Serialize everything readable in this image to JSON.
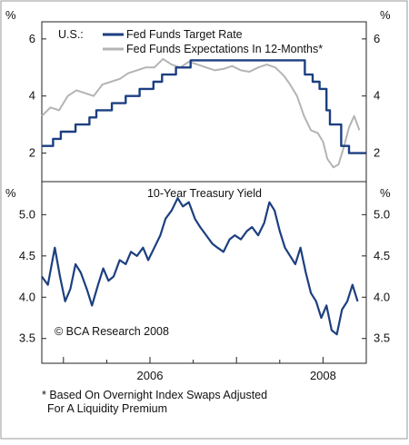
{
  "chart_data": [
    {
      "type": "line",
      "region_label": "U.S.:",
      "unit_left": "%",
      "unit_right": "%",
      "ylim": [
        1,
        6.6
      ],
      "yticks": [
        2,
        4,
        6
      ],
      "grid": false,
      "legend_placement": "top-center",
      "x_domain": [
        2004.75,
        2008.5
      ],
      "series": [
        {
          "name": "Fed Funds Target Rate",
          "color": "#1c3f80",
          "step": true,
          "x": [
            2004.75,
            2004.8,
            2004.88,
            2004.97,
            2005.04,
            2005.14,
            2005.22,
            2005.3,
            2005.38,
            2005.47,
            2005.56,
            2005.64,
            2005.72,
            2005.8,
            2005.88,
            2005.97,
            2006.04,
            2006.14,
            2006.22,
            2006.3,
            2006.38,
            2006.47,
            2007.7,
            2007.79,
            2007.83,
            2007.88,
            2007.96,
            2008.04,
            2008.08,
            2008.21,
            2008.3,
            2008.5
          ],
          "values": [
            2.25,
            2.25,
            2.5,
            2.75,
            2.75,
            3.0,
            3.0,
            3.25,
            3.5,
            3.5,
            3.75,
            3.75,
            4.0,
            4.0,
            4.25,
            4.25,
            4.5,
            4.75,
            4.75,
            5.0,
            5.0,
            5.25,
            5.25,
            4.75,
            4.75,
            4.5,
            4.25,
            3.5,
            3.0,
            2.25,
            2.0,
            2.0
          ]
        },
        {
          "name": "Fed Funds Expectations In 12-Months*",
          "color": "#b4b4b4",
          "step": false,
          "x": [
            2004.75,
            2004.85,
            2004.95,
            2005.05,
            2005.15,
            2005.25,
            2005.35,
            2005.45,
            2005.55,
            2005.65,
            2005.75,
            2005.85,
            2005.95,
            2006.05,
            2006.15,
            2006.25,
            2006.35,
            2006.45,
            2006.55,
            2006.65,
            2006.75,
            2006.85,
            2006.95,
            2007.05,
            2007.15,
            2007.25,
            2007.35,
            2007.45,
            2007.55,
            2007.62,
            2007.7,
            2007.78,
            2007.86,
            2007.94,
            2008.0,
            2008.05,
            2008.12,
            2008.18,
            2008.24,
            2008.3,
            2008.36,
            2008.42
          ],
          "values": [
            3.3,
            3.6,
            3.5,
            4.0,
            4.2,
            4.1,
            4.0,
            4.4,
            4.5,
            4.6,
            4.8,
            4.9,
            5.0,
            5.0,
            5.3,
            5.1,
            5.0,
            5.2,
            5.1,
            5.0,
            4.9,
            4.95,
            5.05,
            4.9,
            4.85,
            5.0,
            5.1,
            5.0,
            4.7,
            4.4,
            4.0,
            3.3,
            2.8,
            2.7,
            2.4,
            1.8,
            1.5,
            1.6,
            2.2,
            2.9,
            3.3,
            2.8
          ]
        }
      ]
    },
    {
      "type": "line",
      "title": "10-Year Treasury Yield",
      "unit_left": "%",
      "unit_right": "%",
      "ylim": [
        3.2,
        5.4
      ],
      "yticks": [
        "3.5",
        "4.0",
        "4.5",
        "5.0"
      ],
      "grid": false,
      "annotation": "© BCA Research 2008",
      "x_domain": [
        2004.75,
        2008.5
      ],
      "xticks": [
        "2006",
        "2008"
      ],
      "series": [
        {
          "color": "#1c3f80",
          "x": [
            2004.75,
            2004.82,
            2004.9,
            2004.96,
            2005.02,
            2005.08,
            2005.14,
            2005.2,
            2005.27,
            2005.33,
            2005.4,
            2005.46,
            2005.52,
            2005.58,
            2005.65,
            2005.72,
            2005.78,
            2005.85,
            2005.92,
            2005.98,
            2006.05,
            2006.12,
            2006.18,
            2006.25,
            2006.32,
            2006.38,
            2006.45,
            2006.52,
            2006.58,
            2006.65,
            2006.72,
            2006.78,
            2006.85,
            2006.92,
            2006.98,
            2007.05,
            2007.12,
            2007.18,
            2007.25,
            2007.32,
            2007.38,
            2007.44,
            2007.5,
            2007.56,
            2007.62,
            2007.68,
            2007.74,
            2007.8,
            2007.86,
            2007.92,
            2007.98,
            2008.04,
            2008.1,
            2008.16,
            2008.22,
            2008.28,
            2008.34,
            2008.4
          ],
          "values": [
            4.25,
            4.15,
            4.6,
            4.25,
            3.95,
            4.1,
            4.4,
            4.3,
            4.1,
            3.9,
            4.15,
            4.35,
            4.2,
            4.25,
            4.45,
            4.4,
            4.55,
            4.5,
            4.6,
            4.45,
            4.6,
            4.75,
            4.95,
            5.05,
            5.2,
            5.1,
            5.15,
            4.95,
            4.85,
            4.75,
            4.65,
            4.6,
            4.55,
            4.7,
            4.75,
            4.7,
            4.8,
            4.85,
            4.75,
            4.9,
            5.15,
            5.05,
            4.8,
            4.6,
            4.5,
            4.4,
            4.6,
            4.3,
            4.05,
            3.95,
            3.75,
            3.9,
            3.6,
            3.55,
            3.85,
            3.95,
            4.15,
            3.95
          ]
        }
      ]
    }
  ],
  "footnote_line1": "* Based On Overnight Index Swaps Adjusted",
  "footnote_line2": "For A Liquidity Premium"
}
